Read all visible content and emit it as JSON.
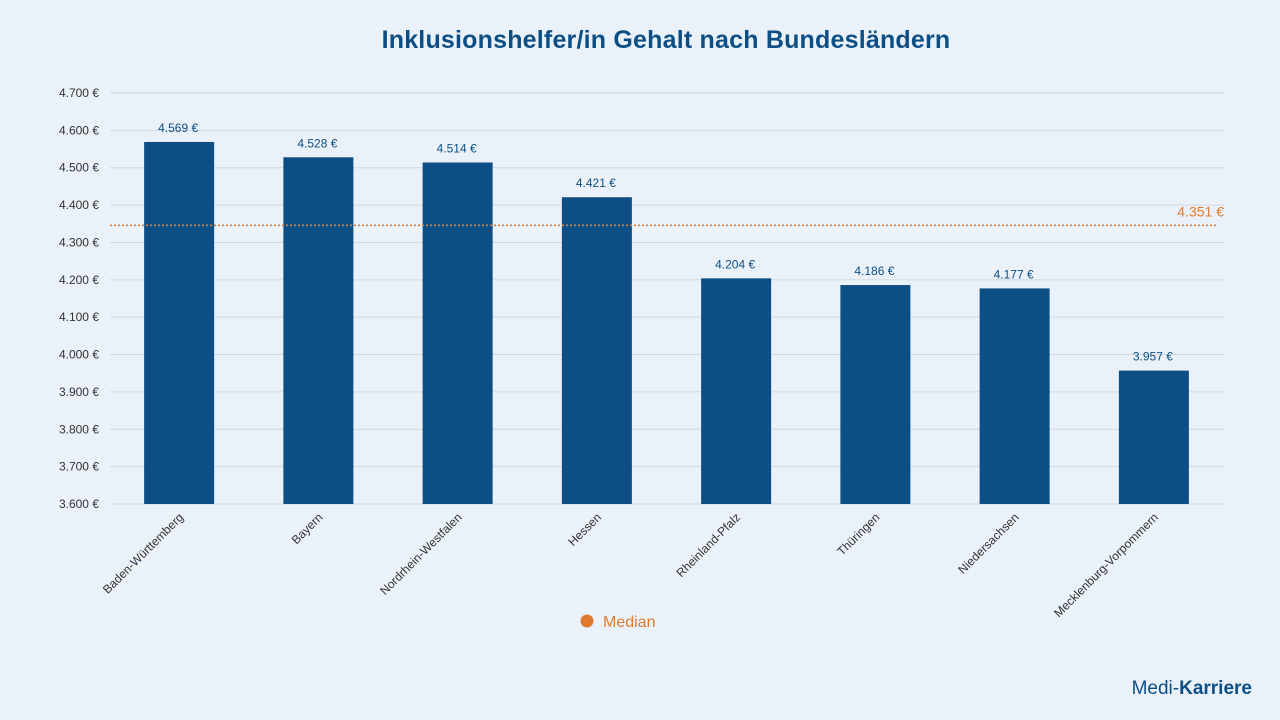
{
  "title": "Inklusionshelfer/in Gehalt nach Bundesländern",
  "logo": {
    "part1": "Medi-",
    "part2": "Karriere"
  },
  "colors": {
    "bar": "#0d4f85",
    "median": "#e07b2e",
    "grid": "#d2d8de",
    "axis_text": "#333333",
    "label_text": "#0d4f85"
  },
  "chart_data": {
    "type": "bar",
    "title": "Inklusionshelfer/in Gehalt nach Bundesländern",
    "categories": [
      "Baden-Württemberg",
      "Bayern",
      "Nordrhein-Westfalen",
      "Hessen",
      "Rheinland-Pfalz",
      "Thüringen",
      "Niedersachsen",
      "Mecklenburg-Vorpommern"
    ],
    "values": [
      4569,
      4528,
      4514,
      4421,
      4204,
      4186,
      4177,
      3957
    ],
    "value_labels": [
      "4.569 €",
      "4.528 €",
      "4.514 €",
      "4.421 €",
      "4.204 €",
      "4.186 €",
      "4.177 €",
      "3.957 €"
    ],
    "ylim": [
      3600,
      4700
    ],
    "yticks": [
      3600,
      3700,
      3800,
      3900,
      4000,
      4100,
      4200,
      4300,
      4400,
      4500,
      4600,
      4700
    ],
    "ytick_labels": [
      "3.600 €",
      "3.700 €",
      "3.800 €",
      "3.900 €",
      "4.000 €",
      "4.100 €",
      "4.200 €",
      "4.300 €",
      "4.400 €",
      "4.500 €",
      "4.600 €",
      "4.700 €"
    ],
    "median": {
      "value": 4351,
      "label": "4.351 €",
      "legend": "Median",
      "position_value": 4346
    },
    "xlabel": "",
    "ylabel": "",
    "grid": true,
    "legend_position": "bottom-center"
  }
}
